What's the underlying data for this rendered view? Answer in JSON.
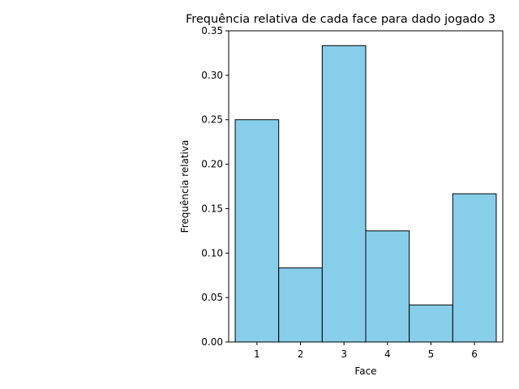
{
  "chart_data": {
    "type": "bar",
    "title": "Frequência relativa de cada face para dado jogado 3",
    "xlabel": "Face",
    "ylabel": "Frequência relativa",
    "categories": [
      "1",
      "2",
      "3",
      "4",
      "5",
      "6"
    ],
    "values": [
      0.25,
      0.0833,
      0.3333,
      0.125,
      0.0417,
      0.1667
    ],
    "ylim": [
      0,
      0.35
    ],
    "yticks": [
      "0.00",
      "0.05",
      "0.10",
      "0.15",
      "0.20",
      "0.25",
      "0.30",
      "0.35"
    ],
    "grid": false,
    "legend": "none",
    "bar_color": "#87CEEB",
    "edge_color": "#000000"
  }
}
